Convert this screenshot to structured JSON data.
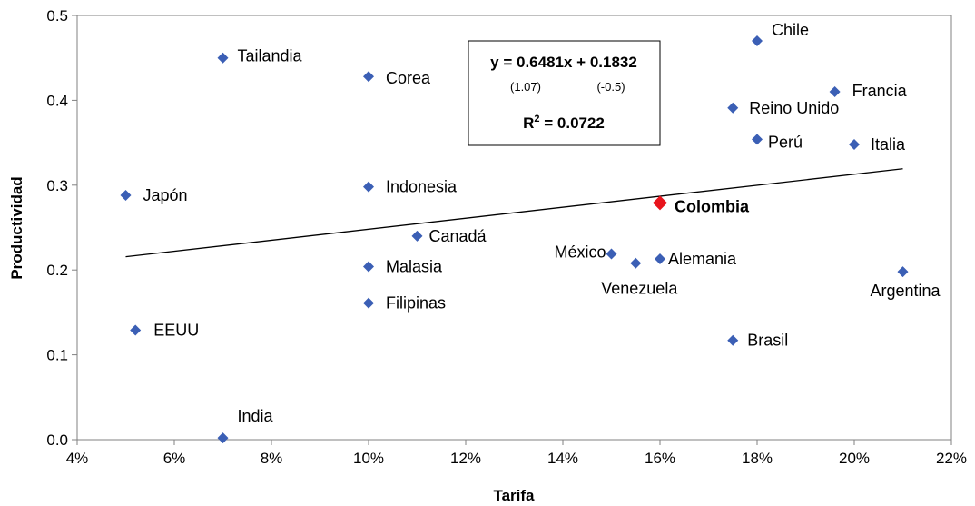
{
  "chart_data": {
    "type": "scatter",
    "xlabel": "Tarifa",
    "ylabel": "Productividad",
    "xlim": [
      0.04,
      0.22
    ],
    "ylim": [
      0,
      0.5
    ],
    "x_ticks": [
      "4%",
      "6%",
      "8%",
      "10%",
      "12%",
      "14%",
      "16%",
      "18%",
      "20%",
      "22%"
    ],
    "y_ticks": [
      "0.0",
      "0.1",
      "0.2",
      "0.3",
      "0.4",
      "0.5"
    ],
    "grid": false,
    "colors": {
      "point": "#3b5fb5",
      "highlight": "#e8141c",
      "trend": "#000000"
    },
    "points": [
      {
        "label": "Tailandia",
        "x": 0.07,
        "y": 0.45
      },
      {
        "label": "Corea",
        "x": 0.1,
        "y": 0.428
      },
      {
        "label": "Chile",
        "x": 0.18,
        "y": 0.47
      },
      {
        "label": "Francia",
        "x": 0.196,
        "y": 0.41
      },
      {
        "label": "Reino Unido",
        "x": 0.175,
        "y": 0.391
      },
      {
        "label": "Perú",
        "x": 0.18,
        "y": 0.354
      },
      {
        "label": "Italia",
        "x": 0.2,
        "y": 0.348
      },
      {
        "label": "Japón",
        "x": 0.05,
        "y": 0.288
      },
      {
        "label": "Indonesia",
        "x": 0.1,
        "y": 0.298
      },
      {
        "label": "Colombia",
        "x": 0.16,
        "y": 0.279,
        "highlight": true
      },
      {
        "label": "Canadá",
        "x": 0.11,
        "y": 0.24
      },
      {
        "label": "México",
        "x": 0.15,
        "y": 0.219
      },
      {
        "label": "Alemania",
        "x": 0.16,
        "y": 0.213
      },
      {
        "label": "Venezuela",
        "x": 0.155,
        "y": 0.208
      },
      {
        "label": "Malasia",
        "x": 0.1,
        "y": 0.204
      },
      {
        "label": "Argentina",
        "x": 0.21,
        "y": 0.198
      },
      {
        "label": "Filipinas",
        "x": 0.1,
        "y": 0.161
      },
      {
        "label": "EEUU",
        "x": 0.052,
        "y": 0.129
      },
      {
        "label": "Brasil",
        "x": 0.175,
        "y": 0.117
      },
      {
        "label": "India",
        "x": 0.07,
        "y": 0.002
      }
    ],
    "trendline": {
      "slope": 0.6481,
      "intercept": 0.1832,
      "x_range": [
        0.05,
        0.21
      ]
    },
    "annotation": {
      "equation": "y = 0.6481x + 0.1832",
      "se_slope": "(1.07)",
      "se_intercept": "(-0.5)",
      "r2_prefix": "R",
      "r2_sup": "2",
      "r2_value": " = 0.0722"
    }
  }
}
